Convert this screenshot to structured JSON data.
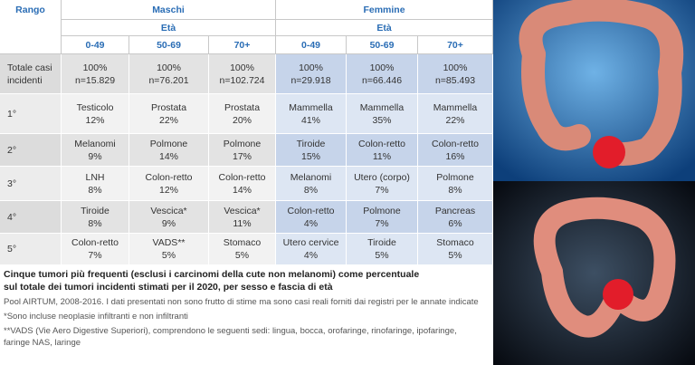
{
  "table": {
    "rank_header": "Rango",
    "groups": [
      {
        "label": "Maschi",
        "sub": "Età",
        "ages": [
          "0-49",
          "50-69",
          "70+"
        ]
      },
      {
        "label": "Femmine",
        "sub": "Età",
        "ages": [
          "0-49",
          "50-69",
          "70+"
        ]
      }
    ],
    "rows": [
      {
        "rank": "Totale casi incidenti",
        "cells": [
          [
            "100%",
            "n=15.829"
          ],
          [
            "100%",
            "n=76.201"
          ],
          [
            "100%",
            "n=102.724"
          ],
          [
            "100%",
            "n=29.918"
          ],
          [
            "100%",
            "n=66.446"
          ],
          [
            "100%",
            "n=85.493"
          ]
        ]
      },
      {
        "rank": "1°",
        "cells": [
          [
            "Testicolo",
            "12%"
          ],
          [
            "Prostata",
            "22%"
          ],
          [
            "Prostata",
            "20%"
          ],
          [
            "Mammella",
            "41%"
          ],
          [
            "Mammella",
            "35%"
          ],
          [
            "Mammella",
            "22%"
          ]
        ]
      },
      {
        "rank": "2°",
        "cells": [
          [
            "Melanomi",
            "9%"
          ],
          [
            "Polmone",
            "14%"
          ],
          [
            "Polmone",
            "17%"
          ],
          [
            "Tiroide",
            "15%"
          ],
          [
            "Colon-retto",
            "11%"
          ],
          [
            "Colon-retto",
            "16%"
          ]
        ]
      },
      {
        "rank": "3°",
        "cells": [
          [
            "LNH",
            "8%"
          ],
          [
            "Colon-retto",
            "12%"
          ],
          [
            "Colon-retto",
            "14%"
          ],
          [
            "Melanomi",
            "8%"
          ],
          [
            "Utero (corpo)",
            "7%"
          ],
          [
            "Polmone",
            "8%"
          ]
        ]
      },
      {
        "rank": "4°",
        "cells": [
          [
            "Tiroide",
            "8%"
          ],
          [
            "Vescica*",
            "9%"
          ],
          [
            "Vescica*",
            "11%"
          ],
          [
            "Colon-retto",
            "4%"
          ],
          [
            "Polmone",
            "7%"
          ],
          [
            "Pancreas",
            "6%"
          ]
        ]
      },
      {
        "rank": "5°",
        "cells": [
          [
            "Colon-retto",
            "7%"
          ],
          [
            "VADS**",
            "5%"
          ],
          [
            "Stomaco",
            "5%"
          ],
          [
            "Utero cervice",
            "4%"
          ],
          [
            "Tiroide",
            "5%"
          ],
          [
            "Stomaco",
            "5%"
          ]
        ]
      }
    ]
  },
  "notes": {
    "caption": [
      "Cinque tumori più frequenti (esclusi i carcinomi della cute non melanomi) come percentuale",
      "sul totale dei tumori incidenti stimati per il 2020, per sesso e fascia di età"
    ],
    "source": "Pool AIRTUM, 2008-2016. I dati presentati non sono frutto di stime ma sono casi reali forniti dai registri per le annate indicate",
    "footnotes": [
      "*Sono incluse neoplasie infiltranti e non infiltranti",
      "**VADS (Vie Aero Digestive Superiori), comprendono le seguenti sedi: lingua, bocca, orofaringe, rinofaringe, ipofaringe,",
      "faringe NAS, laringe"
    ]
  }
}
